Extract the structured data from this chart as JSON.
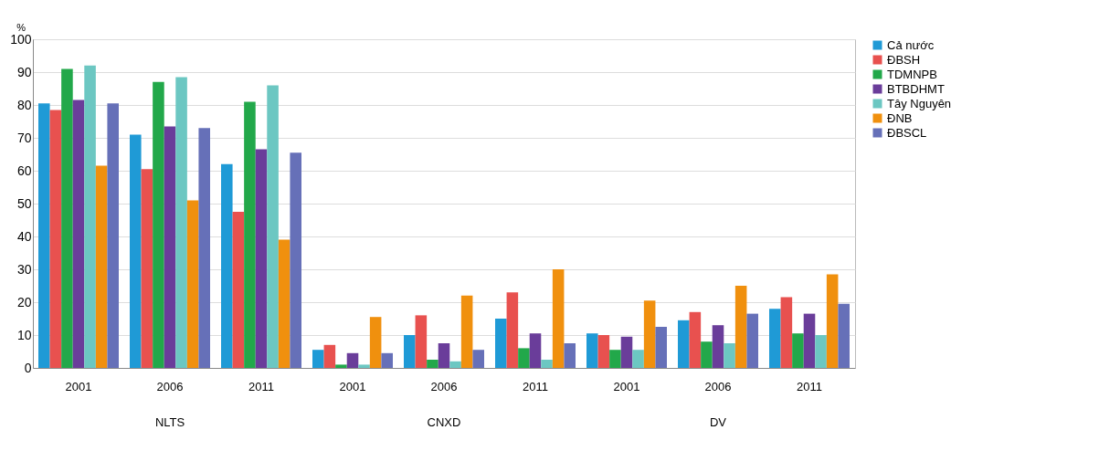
{
  "chart_data": {
    "type": "bar",
    "ylabel": "%",
    "categories": [
      "2001",
      "2006",
      "2011",
      "2001",
      "2006",
      "2011",
      "2001",
      "2006",
      "2011"
    ],
    "annotations": [
      "NLTS",
      "CNXD",
      "DV"
    ],
    "series": [
      {
        "name": "Cả nước",
        "color": "#1f9ad6",
        "values": [
          80.5,
          71,
          62,
          5.5,
          10,
          15,
          10.5,
          14.5,
          18
        ]
      },
      {
        "name": "ĐBSH",
        "color": "#e8514f",
        "values": [
          78.5,
          60.5,
          47.5,
          7,
          16,
          23,
          10,
          17,
          21.5
        ]
      },
      {
        "name": "TDMNPB",
        "color": "#22a84a",
        "values": [
          91,
          87,
          81,
          1,
          2.5,
          6,
          5.5,
          8,
          10.5
        ]
      },
      {
        "name": "BTBDHMT",
        "color": "#6a3d9a",
        "values": [
          81.5,
          73.5,
          66.5,
          4.5,
          7.5,
          10.5,
          9.5,
          13,
          16.5
        ]
      },
      {
        "name": "Tây Nguyên",
        "color": "#6cc7c2",
        "values": [
          92,
          88.5,
          86,
          1,
          2,
          2.5,
          5.5,
          7.5,
          10
        ]
      },
      {
        "name": "ĐNB",
        "color": "#f0900e",
        "values": [
          61.5,
          51,
          39,
          15.5,
          22,
          30,
          20.5,
          25,
          28.5
        ]
      },
      {
        "name": "ĐBSCL",
        "color": "#6670b8",
        "values": [
          80.5,
          73,
          65.5,
          4.5,
          5.5,
          7.5,
          12.5,
          16.5,
          19.5
        ]
      }
    ],
    "ylim": [
      0,
      100
    ],
    "yticks": [
      0,
      10,
      20,
      30,
      40,
      50,
      60,
      70,
      80,
      90,
      100
    ],
    "grid": "y",
    "legend": "right"
  }
}
